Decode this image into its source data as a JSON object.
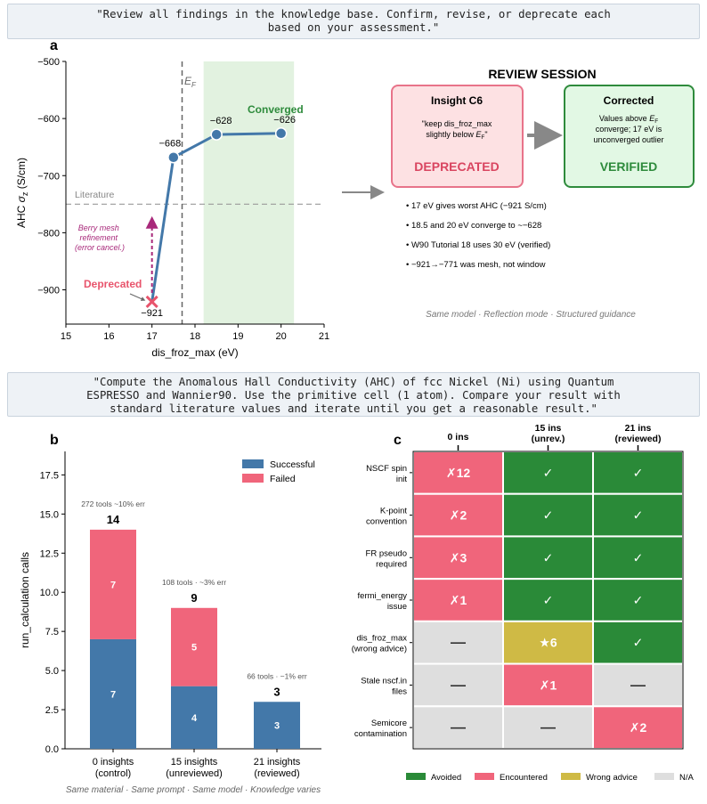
{
  "prompt_top": {
    "line1": "\"Review all findings in the knowledge base. Confirm, revise, or deprecate each",
    "line2": "based on your assessment.\""
  },
  "prompt_mid": {
    "line1": "\"Compute the Anomalous Hall Conductivity (AHC) of fcc Nickel (Ni) using Quantum",
    "line2": "ESPRESSO and Wannier90. Use the primitive cell (1 atom). Compare your result with",
    "line3": "standard literature values and iterate until you get a reasonable result.\""
  },
  "panel_a": {
    "label": "a",
    "ef_label": "E",
    "ef_sub": "F",
    "literature_label": "Literature",
    "converged_label": "Converged",
    "deprecated_label": "Deprecated",
    "annotation": [
      "Berry mesh",
      "refinement",
      "(error cancel.)"
    ],
    "colors": {
      "line": "#4378a9",
      "converged": "#2e8b3c",
      "deprecated": "#e8546c",
      "annotation": "#a8287a",
      "band": "#e2f2e0"
    }
  },
  "chart_data": [
    {
      "type": "line",
      "title": "",
      "xlabel": "dis_froz_max (eV)",
      "ylabel": "AHC σz (S/cm)",
      "xlim": [
        15,
        21
      ],
      "ylim": [
        -960,
        -500
      ],
      "xticks": [
        15,
        16,
        17,
        18,
        19,
        20,
        21
      ],
      "yticks": [
        -900,
        -800,
        -700,
        -600,
        -500
      ],
      "x": [
        17,
        17.5,
        18.5,
        20
      ],
      "y": [
        -921,
        -668,
        -628,
        -626
      ],
      "point_labels": [
        "−921",
        "−668",
        "−628",
        "−626"
      ],
      "fermi_level_x": 17.7,
      "literature_y": -750,
      "converged_band": [
        18.2,
        20.3
      ],
      "deprecated_point": {
        "x": 17,
        "y": -921
      },
      "refinement_arrow_to_y": -771
    },
    {
      "type": "bar",
      "title": "",
      "xlabel": "",
      "ylabel": "run_calculation calls",
      "ylim": [
        0,
        19
      ],
      "yticks": [
        0.0,
        2.5,
        5.0,
        7.5,
        10.0,
        12.5,
        15.0,
        17.5
      ],
      "ytick_labels": [
        "0.0",
        "2.5",
        "5.0",
        "7.5",
        "10.0",
        "12.5",
        "15.0",
        "17.5"
      ],
      "categories": [
        [
          "0 insights",
          "(control)"
        ],
        [
          "15 insights",
          "(unreviewed)"
        ],
        [
          "21 insights",
          "(reviewed)"
        ]
      ],
      "series": [
        {
          "name": "Successful",
          "color": "#4378a9",
          "values": [
            7,
            4,
            3
          ]
        },
        {
          "name": "Failed",
          "color": "#f0657b",
          "values": [
            7,
            5,
            0
          ]
        }
      ],
      "totals": [
        14,
        9,
        3
      ],
      "tool_notes": [
        "272 tools ~10% err",
        "108 tools · ~3% err",
        "66 tools · ~1% err"
      ],
      "legend": "top-right"
    },
    {
      "type": "table",
      "columns": [
        [
          "0 ins",
          ""
        ],
        [
          "15 ins",
          "(unrev.)"
        ],
        [
          "21 ins",
          "(reviewed)"
        ]
      ],
      "rows": [
        {
          "label": [
            "NSCF spin",
            "init"
          ],
          "cells": [
            [
              "E",
              "✗12"
            ],
            [
              "A",
              "✓"
            ],
            [
              "A",
              "✓"
            ]
          ]
        },
        {
          "label": [
            "K-point",
            "convention"
          ],
          "cells": [
            [
              "E",
              "✗2"
            ],
            [
              "A",
              "✓"
            ],
            [
              "A",
              "✓"
            ]
          ]
        },
        {
          "label": [
            "FR pseudo",
            "required"
          ],
          "cells": [
            [
              "E",
              "✗3"
            ],
            [
              "A",
              "✓"
            ],
            [
              "A",
              "✓"
            ]
          ]
        },
        {
          "label": [
            "fermi_energy",
            "issue"
          ],
          "cells": [
            [
              "E",
              "✗1"
            ],
            [
              "A",
              "✓"
            ],
            [
              "A",
              "✓"
            ]
          ]
        },
        {
          "label": [
            "dis_froz_max",
            "(wrong advice)"
          ],
          "cells": [
            [
              "N",
              "—"
            ],
            [
              "W",
              "★6"
            ],
            [
              "A",
              "✓"
            ]
          ]
        },
        {
          "label": [
            "Stale nscf.in",
            "files"
          ],
          "cells": [
            [
              "N",
              "—"
            ],
            [
              "E",
              "✗1"
            ],
            [
              "N",
              "—"
            ]
          ]
        },
        {
          "label": [
            "Semicore",
            "contamination"
          ],
          "cells": [
            [
              "N",
              "—"
            ],
            [
              "N",
              "—"
            ],
            [
              "E",
              "✗2"
            ]
          ]
        }
      ],
      "legend": [
        {
          "key": "A",
          "name": "Avoided",
          "color": "#2a8a38"
        },
        {
          "key": "E",
          "name": "Encountered",
          "color": "#f0657b"
        },
        {
          "key": "W",
          "name": "Wrong advice",
          "color": "#cfba45"
        },
        {
          "key": "N",
          "name": "N/A",
          "color": "#dedede"
        }
      ]
    }
  ],
  "review": {
    "title": "REVIEW SESSION",
    "insight_title": "Insight C6",
    "insight_quote_l1": "\"keep dis_froz_max",
    "insight_quote_l2": "slightly below ",
    "insight_quote_sym": "E",
    "insight_quote_sub": "F",
    "insight_quote_end": "\"",
    "insight_status": "DEPRECATED",
    "corrected_title": "Corrected",
    "corrected_l1a": "Values above ",
    "corrected_l1sym": "E",
    "corrected_l1sub": "F",
    "corrected_l2": "converge; 17 eV is",
    "corrected_l3": "unconverged outlier",
    "corrected_status": "VERIFIED",
    "bullets": [
      "17 eV gives worst AHC (−921 S/cm)",
      "18.5 and 20 eV converge to ~−628",
      "W90 Tutorial 18 uses 30 eV (verified)",
      "−921→−771 was mesh, not window"
    ],
    "footer": "Same model · Reflection mode · Structured guidance"
  },
  "panel_b": {
    "label": "b",
    "footer": "Same material · Same prompt · Same model · Knowledge varies"
  },
  "panel_c": {
    "label": "c"
  }
}
